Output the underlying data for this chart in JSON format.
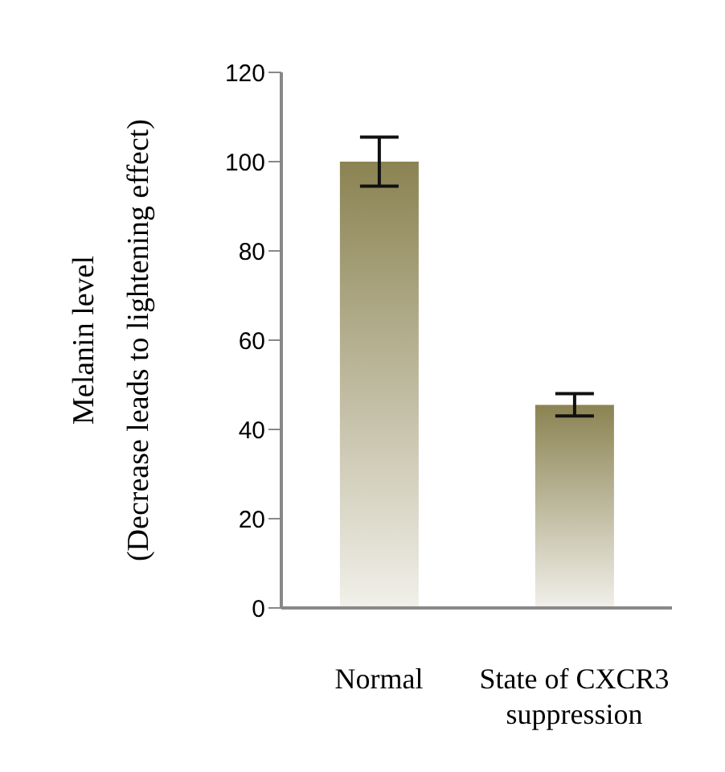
{
  "chart_data": {
    "type": "bar",
    "ylabel": "Melanin level\n(Decrease leads to lightening effect)",
    "categories": [
      "Normal",
      "State of CXCR3 suppression"
    ],
    "values": [
      100,
      45.5
    ],
    "errors": [
      5.5,
      2.5
    ],
    "color": "#8b8352",
    "ylim": [
      0,
      120
    ],
    "yticks": [
      0,
      20,
      40,
      60,
      80,
      100,
      120
    ],
    "grid": false,
    "legend": false
  }
}
